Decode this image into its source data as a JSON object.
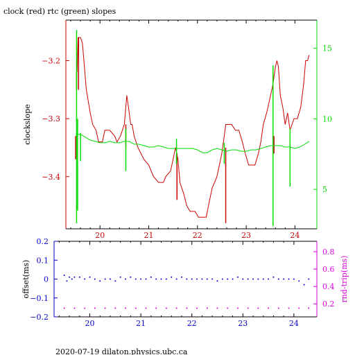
{
  "page": {
    "title": "clock (red) rtc (green) slopes",
    "footer": "2020-07-19  dilaton.physics.ubc.ca"
  },
  "colors": {
    "clock": "#cc0000",
    "rtc": "#00dd00",
    "offset": "#0000cc",
    "roundtrip": "#dd00dd",
    "axis": "#000000"
  },
  "chart_data": [
    {
      "type": "line",
      "title": "clock (red) rtc (green) slopes",
      "ylabel": "clockslope",
      "y2label": "",
      "xlim": [
        19.3,
        24.45
      ],
      "ylim": [
        -3.49,
        -3.13
      ],
      "y2lim": [
        2.2,
        17.0
      ],
      "xticks": [
        20,
        21,
        22,
        23,
        24
      ],
      "yticks": [
        -3.4,
        -3.3,
        -3.2
      ],
      "y2ticks": [
        5,
        10,
        15
      ],
      "series": [
        {
          "axis": "left",
          "color": "#cc0000",
          "x": [
            19.53,
            19.55,
            19.57,
            19.6,
            19.64,
            19.67,
            19.72,
            19.76,
            19.8,
            19.85,
            19.92,
            19.97,
            20.05,
            20.1,
            20.2,
            20.3,
            20.35,
            20.42,
            20.5,
            20.55,
            20.6,
            20.63,
            20.66,
            20.7,
            20.78,
            20.9,
            21.0,
            21.05,
            21.1,
            21.2,
            21.25,
            21.3,
            21.35,
            21.45,
            21.5,
            21.55,
            21.6,
            21.64,
            21.68,
            21.72,
            21.78,
            21.85,
            21.9,
            21.95,
            22.02,
            22.1,
            22.18,
            22.25,
            22.3,
            22.4,
            22.5,
            22.55,
            22.58,
            22.62,
            22.66,
            22.7,
            22.78,
            22.85,
            22.92,
            22.98,
            23.05,
            23.1,
            23.18,
            23.25,
            23.3,
            23.35,
            23.42,
            23.5,
            23.55,
            23.6,
            23.63,
            23.66,
            23.7,
            23.75,
            23.8,
            23.85,
            23.9,
            23.98,
            24.05,
            24.12,
            24.18,
            24.22,
            24.26,
            24.29
          ],
          "y": [
            -3.22,
            -3.16,
            -3.16,
            -3.16,
            -3.17,
            -3.2,
            -3.25,
            -3.27,
            -3.29,
            -3.31,
            -3.32,
            -3.34,
            -3.34,
            -3.32,
            -3.32,
            -3.33,
            -3.34,
            -3.33,
            -3.31,
            -3.26,
            -3.29,
            -3.31,
            -3.31,
            -3.33,
            -3.35,
            -3.37,
            -3.38,
            -3.39,
            -3.4,
            -3.41,
            -3.41,
            -3.41,
            -3.4,
            -3.39,
            -3.37,
            -3.35,
            -3.37,
            -3.41,
            -3.42,
            -3.43,
            -3.45,
            -3.46,
            -3.46,
            -3.46,
            -3.47,
            -3.47,
            -3.47,
            -3.44,
            -3.42,
            -3.4,
            -3.36,
            -3.33,
            -3.31,
            -3.31,
            -3.31,
            -3.31,
            -3.32,
            -3.32,
            -3.34,
            -3.36,
            -3.38,
            -3.38,
            -3.38,
            -3.36,
            -3.34,
            -3.31,
            -3.29,
            -3.26,
            -3.24,
            -3.21,
            -3.2,
            -3.21,
            -3.26,
            -3.28,
            -3.31,
            -3.29,
            -3.32,
            -3.3,
            -3.3,
            -3.28,
            -3.24,
            -3.2,
            -3.2,
            -3.19
          ],
          "spikes": [
            {
              "x": 19.5,
              "from": -3.33,
              "to": -3.37
            },
            {
              "x": 19.52,
              "from": -3.22,
              "to": -3.25
            },
            {
              "x": 19.56,
              "from": -3.16,
              "to": -3.25
            },
            {
              "x": 20.53,
              "from": -3.31,
              "to": -3.35
            },
            {
              "x": 21.58,
              "from": -3.36,
              "to": -3.44
            },
            {
              "x": 22.58,
              "from": -3.35,
              "to": -3.48
            },
            {
              "x": 23.55,
              "from": -3.22,
              "to": -3.27
            },
            {
              "x": 23.57,
              "from": -3.33,
              "to": -3.36
            }
          ]
        },
        {
          "axis": "right",
          "color": "#00dd00",
          "x": [
            19.5,
            19.6,
            19.7,
            19.8,
            19.9,
            20.0,
            20.1,
            20.2,
            20.3,
            20.4,
            20.5,
            20.6,
            20.7,
            20.8,
            20.9,
            21.0,
            21.1,
            21.2,
            21.3,
            21.4,
            21.5,
            21.6,
            21.7,
            21.8,
            21.9,
            22.0,
            22.1,
            22.2,
            22.3,
            22.4,
            22.5,
            22.6,
            22.7,
            22.8,
            22.9,
            23.0,
            23.1,
            23.2,
            23.3,
            23.4,
            23.5,
            23.6,
            23.7,
            23.8,
            23.9,
            24.0,
            24.1,
            24.2,
            24.29
          ],
          "y": [
            8.9,
            8.9,
            8.7,
            8.5,
            8.4,
            8.3,
            8.3,
            8.4,
            8.3,
            8.3,
            8.4,
            8.4,
            8.2,
            8.2,
            8.1,
            8.0,
            8.0,
            8.1,
            8.0,
            7.9,
            7.9,
            7.9,
            7.9,
            7.9,
            7.9,
            7.8,
            7.6,
            7.6,
            7.8,
            7.9,
            7.8,
            7.7,
            7.8,
            7.8,
            7.7,
            7.7,
            7.8,
            7.8,
            7.9,
            8.0,
            8.1,
            8.1,
            8.1,
            8.0,
            8.0,
            7.9,
            8.0,
            8.2,
            8.4
          ],
          "spikes": [
            {
              "x": 19.52,
              "from": 2.6,
              "to": 16.3
            },
            {
              "x": 19.54,
              "from": 3.5,
              "to": 10.0
            },
            {
              "x": 19.6,
              "from": 7.0,
              "to": 9.0
            },
            {
              "x": 20.53,
              "from": 6.3,
              "to": 9.3
            },
            {
              "x": 21.57,
              "from": 6.8,
              "to": 8.6
            },
            {
              "x": 22.55,
              "from": 6.8,
              "to": 8.3
            },
            {
              "x": 23.55,
              "from": 2.4,
              "to": 13.8
            },
            {
              "x": 23.9,
              "from": 5.2,
              "to": 9.3
            }
          ]
        }
      ]
    },
    {
      "type": "scatter",
      "ylabel": "offset(ms)",
      "y2label": "rnd-trip(ms)",
      "xlim": [
        19.3,
        24.45
      ],
      "ylim": [
        -0.2,
        0.2
      ],
      "y2lim": [
        0.05,
        0.92
      ],
      "xticks": [
        20,
        21,
        22,
        23,
        24
      ],
      "yticks": [
        -0.2,
        -0.1,
        0,
        0.1,
        0.2
      ],
      "y2ticks": [
        0.2,
        0.4,
        0.6,
        0.8
      ],
      "ytick_labels": [
        "-0.2",
        "-0.1",
        "0",
        "0.1",
        "0.2"
      ],
      "y2tick_labels": [
        "0.2",
        "0.4",
        "0.6",
        "0.8"
      ],
      "series": [
        {
          "axis": "left",
          "color": "#0000cc",
          "x": [
            19.5,
            19.55,
            19.6,
            19.65,
            19.7,
            19.8,
            19.9,
            20.0,
            20.1,
            20.2,
            20.3,
            20.4,
            20.5,
            20.6,
            20.7,
            20.8,
            20.9,
            21.0,
            21.1,
            21.2,
            21.3,
            21.4,
            21.5,
            21.6,
            21.7,
            21.8,
            21.9,
            22.0,
            22.1,
            22.2,
            22.3,
            22.4,
            22.5,
            22.6,
            22.7,
            22.8,
            22.9,
            23.0,
            23.1,
            23.2,
            23.3,
            23.4,
            23.5,
            23.6,
            23.7,
            23.8,
            23.9,
            24.0,
            24.1,
            24.2,
            24.29
          ],
          "y": [
            0.02,
            -0.01,
            0.01,
            0.0,
            0.01,
            0.01,
            0.0,
            0.01,
            0.0,
            -0.01,
            0.0,
            0.0,
            -0.01,
            0.01,
            0.0,
            0.01,
            0.0,
            0.0,
            0.0,
            0.01,
            0.0,
            0.0,
            0.0,
            0.01,
            0.0,
            0.01,
            0.0,
            0.0,
            0.0,
            0.0,
            0.0,
            0.0,
            -0.01,
            0.0,
            0.0,
            0.0,
            0.01,
            0.0,
            0.0,
            0.0,
            0.0,
            0.0,
            0.0,
            0.01,
            0.0,
            0.0,
            0.0,
            0.0,
            -0.01,
            -0.03,
            0.0
          ]
        },
        {
          "axis": "right",
          "color": "#dd00dd",
          "x": [
            19.5,
            19.7,
            19.9,
            20.1,
            20.3,
            20.5,
            20.7,
            20.9,
            21.1,
            21.3,
            21.5,
            21.7,
            21.9,
            22.1,
            22.3,
            22.5,
            22.7,
            22.9,
            23.1,
            23.3,
            23.5,
            23.7,
            23.9,
            24.1,
            24.29
          ],
          "y": [
            0.15,
            0.15,
            0.15,
            0.15,
            0.15,
            0.15,
            0.15,
            0.15,
            0.15,
            0.15,
            0.15,
            0.15,
            0.15,
            0.15,
            0.15,
            0.15,
            0.15,
            0.15,
            0.15,
            0.15,
            0.15,
            0.15,
            0.15,
            0.15,
            0.15
          ]
        }
      ]
    }
  ]
}
